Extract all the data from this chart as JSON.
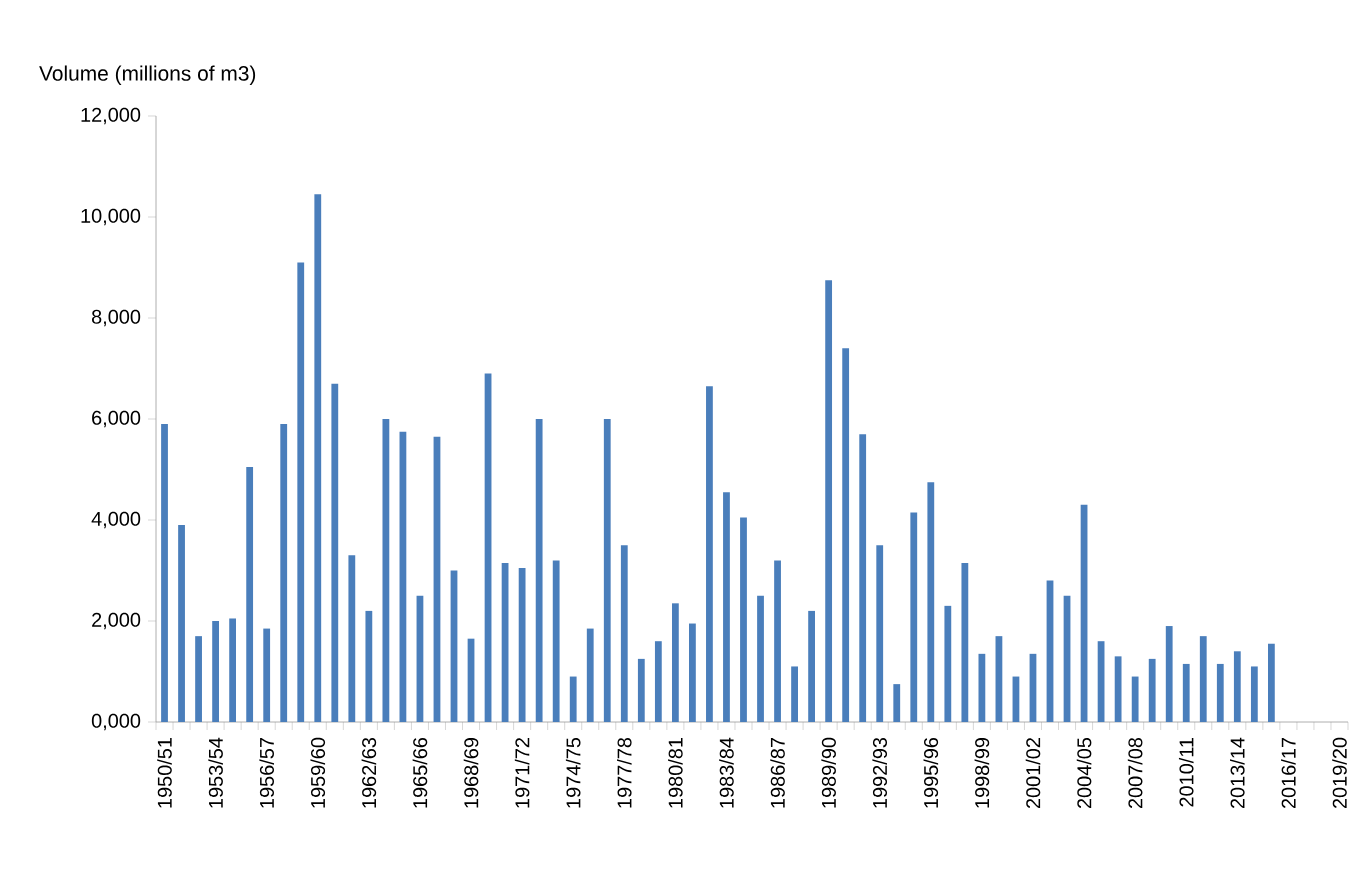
{
  "chart_data": {
    "type": "bar",
    "ylabel": "Volume (millions of m3)",
    "categories": [
      "1950/51",
      null,
      null,
      "1953/54",
      null,
      null,
      "1956/57",
      null,
      null,
      "1959/60",
      null,
      null,
      "1962/63",
      null,
      null,
      "1965/66",
      null,
      null,
      "1968/69",
      null,
      null,
      "1971/72",
      null,
      null,
      "1974/75",
      null,
      null,
      "1977/78",
      null,
      null,
      "1980/81",
      null,
      null,
      "1983/84",
      null,
      null,
      "1986/87",
      null,
      null,
      "1989/90",
      null,
      null,
      "1992/93",
      null,
      null,
      "1995/96",
      null,
      null,
      "1998/99",
      null,
      null,
      "2001/02",
      null,
      null,
      "2004/05",
      null,
      null,
      "2007/08",
      null,
      null,
      "2010/11",
      null,
      null,
      "2013/14",
      null,
      null,
      "2016/17",
      null,
      null,
      "2019/20"
    ],
    "values": [
      5900,
      3900,
      1700,
      2000,
      2050,
      5050,
      1850,
      5900,
      9100,
      10450,
      6700,
      3300,
      2200,
      6000,
      5750,
      2500,
      5650,
      3000,
      1650,
      6900,
      3150,
      3050,
      6000,
      3200,
      900,
      1850,
      6000,
      3500,
      1250,
      1600,
      2350,
      1950,
      6650,
      4550,
      4050,
      2500,
      3200,
      1100,
      2200,
      8750,
      7400,
      5700,
      3500,
      750,
      4150,
      4750,
      2300,
      3150,
      1350,
      1700,
      900,
      1350,
      2800,
      2500,
      4300,
      1600,
      1300,
      900,
      1250,
      1900,
      1150,
      1700,
      1150,
      1400,
      1100,
      1550,
      null,
      null,
      null,
      null
    ],
    "color": "#4a7ebb",
    "ylim": [
      0,
      12000
    ],
    "yticks": [
      {
        "value": 0,
        "label": "0,000"
      },
      {
        "value": 2000,
        "label": "2,000"
      },
      {
        "value": 4000,
        "label": "4,000"
      },
      {
        "value": 6000,
        "label": "6,000"
      },
      {
        "value": 8000,
        "label": "8,000"
      },
      {
        "value": 10000,
        "label": "10,000"
      },
      {
        "value": 12000,
        "label": "12,000"
      }
    ]
  }
}
